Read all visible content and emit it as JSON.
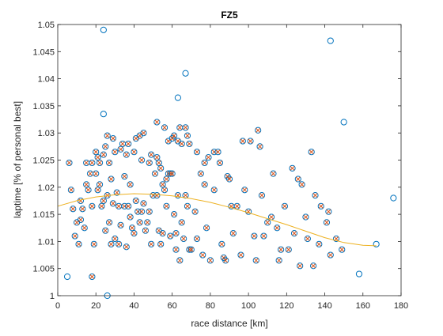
{
  "chart_data": {
    "type": "scatter",
    "title": "FZ5",
    "xlabel": "race distance [km]",
    "ylabel": "laptime [% of personal best]",
    "xlim": [
      0,
      180
    ],
    "ylim": [
      1,
      1.05
    ],
    "xticks": [
      "0",
      "20",
      "40",
      "60",
      "80",
      "100",
      "120",
      "140",
      "160",
      "180"
    ],
    "yticks": [
      "1",
      "1.005",
      "1.01",
      "1.015",
      "1.02",
      "1.025",
      "1.03",
      "1.035",
      "1.04",
      "1.045",
      "1.05"
    ],
    "grid": false,
    "box": true,
    "colors": {
      "circle": "#0072BD",
      "cross": "#D95319",
      "fit": "#EDB120",
      "axis": "#262626"
    },
    "series": [
      {
        "marker": "circle",
        "points": [
          [
            24,
            1.049
          ],
          [
            143,
            1.047
          ],
          [
            67,
            1.041
          ],
          [
            63,
            1.0365
          ],
          [
            24,
            1.0335
          ],
          [
            150,
            1.032
          ],
          [
            5,
            1.0035
          ],
          [
            26,
            1.0
          ],
          [
            176,
            1.018
          ],
          [
            158,
            1.004
          ],
          [
            167,
            1.0095
          ]
        ]
      },
      {
        "marker": "circle-cross",
        "points": [
          [
            6,
            1.0245
          ],
          [
            7,
            1.0195
          ],
          [
            8,
            1.016
          ],
          [
            9,
            1.011
          ],
          [
            10,
            1.0135
          ],
          [
            11,
            1.0095
          ],
          [
            12,
            1.014
          ],
          [
            12,
            1.0175
          ],
          [
            13,
            1.016
          ],
          [
            14,
            1.0125
          ],
          [
            15,
            1.0205
          ],
          [
            15,
            1.0245
          ],
          [
            16,
            1.0195
          ],
          [
            17,
            1.0225
          ],
          [
            18,
            1.0245
          ],
          [
            18,
            1.0165
          ],
          [
            18,
            1.0035
          ],
          [
            19,
            1.0095
          ],
          [
            20,
            1.0265
          ],
          [
            20,
            1.0225
          ],
          [
            21,
            1.0195
          ],
          [
            21,
            1.0255
          ],
          [
            22,
            1.0245
          ],
          [
            22,
            1.0205
          ],
          [
            23,
            1.0165
          ],
          [
            24,
            1.0175
          ],
          [
            24,
            1.026
          ],
          [
            25,
            1.0275
          ],
          [
            25,
            1.012
          ],
          [
            26,
            1.0295
          ],
          [
            26,
            1.0185
          ],
          [
            27,
            1.0135
          ],
          [
            27,
            1.0245
          ],
          [
            28,
            1.0215
          ],
          [
            28,
            1.0095
          ],
          [
            29,
            1.029
          ],
          [
            29,
            1.017
          ],
          [
            30,
            1.0265
          ],
          [
            30,
            1.0105
          ],
          [
            31,
            1.019
          ],
          [
            32,
            1.0165
          ],
          [
            32,
            1.0095
          ],
          [
            33,
            1.027
          ],
          [
            33,
            1.013
          ],
          [
            34,
            1.028
          ],
          [
            35,
            1.022
          ],
          [
            35,
            1.0165
          ],
          [
            36,
            1.026
          ],
          [
            36,
            1.009
          ],
          [
            37,
            1.028
          ],
          [
            37,
            1.0165
          ],
          [
            38,
            1.0205
          ],
          [
            38,
            1.0145
          ],
          [
            39,
            1.0125
          ],
          [
            40,
            1.0115
          ],
          [
            40,
            1.0265
          ],
          [
            41,
            1.029
          ],
          [
            41,
            1.0175
          ],
          [
            42,
            1.0155
          ],
          [
            43,
            1.0295
          ],
          [
            43,
            1.0135
          ],
          [
            44,
            1.025
          ],
          [
            44,
            1.0155
          ],
          [
            45,
            1.03
          ],
          [
            45,
            1.017
          ],
          [
            46,
            1.012
          ],
          [
            47,
            1.0135
          ],
          [
            48,
            1.0245
          ],
          [
            48,
            1.0155
          ],
          [
            49,
            1.026
          ],
          [
            49,
            1.0095
          ],
          [
            50,
            1.0185
          ],
          [
            51,
            1.0225
          ],
          [
            52,
            1.032
          ],
          [
            52,
            1.0255
          ],
          [
            52,
            1.0185
          ],
          [
            53,
            1.0245
          ],
          [
            53,
            1.012
          ],
          [
            54,
            1.0235
          ],
          [
            54,
            1.0095
          ],
          [
            55,
            1.0205
          ],
          [
            55,
            1.0115
          ],
          [
            56,
            1.031
          ],
          [
            56,
            1.0195
          ],
          [
            57,
            1.0215
          ],
          [
            57,
            1.0165
          ],
          [
            58,
            1.0285
          ],
          [
            58,
            1.0225
          ],
          [
            59,
            1.0225
          ],
          [
            59,
            1.011
          ],
          [
            60,
            1.029
          ],
          [
            60,
            1.0225
          ],
          [
            61,
            1.0295
          ],
          [
            61,
            1.015
          ],
          [
            62,
            1.0115
          ],
          [
            62,
            1.0085
          ],
          [
            63,
            1.0285
          ],
          [
            63,
            1.0185
          ],
          [
            64,
            1.031
          ],
          [
            64,
            1.0065
          ],
          [
            65,
            1.028
          ],
          [
            65,
            1.0135
          ],
          [
            66,
            1.0105
          ],
          [
            67,
            1.031
          ],
          [
            67,
            1.0185
          ],
          [
            68,
            1.0295
          ],
          [
            68,
            1.0165
          ],
          [
            69,
            1.028
          ],
          [
            69,
            1.0085
          ],
          [
            70,
            1.0085
          ],
          [
            72,
            1.0155
          ],
          [
            73,
            1.0265
          ],
          [
            73,
            1.0105
          ],
          [
            75,
            1.0225
          ],
          [
            76,
            1.0075
          ],
          [
            77,
            1.0245
          ],
          [
            77,
            1.0205
          ],
          [
            78,
            1.0125
          ],
          [
            79,
            1.0255
          ],
          [
            80,
            1.0065
          ],
          [
            82,
            1.0265
          ],
          [
            82,
            1.0195
          ],
          [
            84,
            1.0265
          ],
          [
            85,
            1.0245
          ],
          [
            86,
            1.0095
          ],
          [
            87,
            1.007
          ],
          [
            88,
            1.0065
          ],
          [
            89,
            1.022
          ],
          [
            90,
            1.0215
          ],
          [
            91,
            1.0165
          ],
          [
            92,
            1.0115
          ],
          [
            94,
            1.0165
          ],
          [
            96,
            1.0075
          ],
          [
            97,
            1.0285
          ],
          [
            98,
            1.0195
          ],
          [
            100,
            1.0155
          ],
          [
            101,
            1.0285
          ],
          [
            103,
            1.011
          ],
          [
            104,
            1.0065
          ],
          [
            105,
            1.0305
          ],
          [
            106,
            1.0275
          ],
          [
            107,
            1.0185
          ],
          [
            108,
            1.011
          ],
          [
            110,
            1.0135
          ],
          [
            112,
            1.0145
          ],
          [
            113,
            1.0225
          ],
          [
            115,
            1.0125
          ],
          [
            116,
            1.0065
          ],
          [
            117,
            1.0085
          ],
          [
            119,
            1.0165
          ],
          [
            121,
            1.0085
          ],
          [
            123,
            1.0235
          ],
          [
            124,
            1.0115
          ],
          [
            126,
            1.0215
          ],
          [
            127,
            1.0055
          ],
          [
            128,
            1.0205
          ],
          [
            130,
            1.0145
          ],
          [
            131,
            1.0105
          ],
          [
            133,
            1.0265
          ],
          [
            134,
            1.0055
          ],
          [
            135,
            1.0185
          ],
          [
            137,
            1.0095
          ],
          [
            138,
            1.0165
          ],
          [
            141,
            1.0135
          ],
          [
            142,
            1.0155
          ],
          [
            143,
            1.0075
          ],
          [
            146,
            1.0105
          ],
          [
            149,
            1.0085
          ]
        ]
      }
    ],
    "fit_curve": {
      "style": "line",
      "x": [
        0,
        10,
        20,
        30,
        40,
        50,
        60,
        70,
        80,
        90,
        100,
        110,
        120,
        130,
        140,
        150,
        160,
        167
      ],
      "y": [
        1.0165,
        1.0175,
        1.0182,
        1.0186,
        1.0188,
        1.0187,
        1.0184,
        1.0179,
        1.0172,
        1.0163,
        1.0153,
        1.0142,
        1.0131,
        1.0119,
        1.0107,
        1.0098,
        1.0093,
        1.0092
      ]
    }
  }
}
